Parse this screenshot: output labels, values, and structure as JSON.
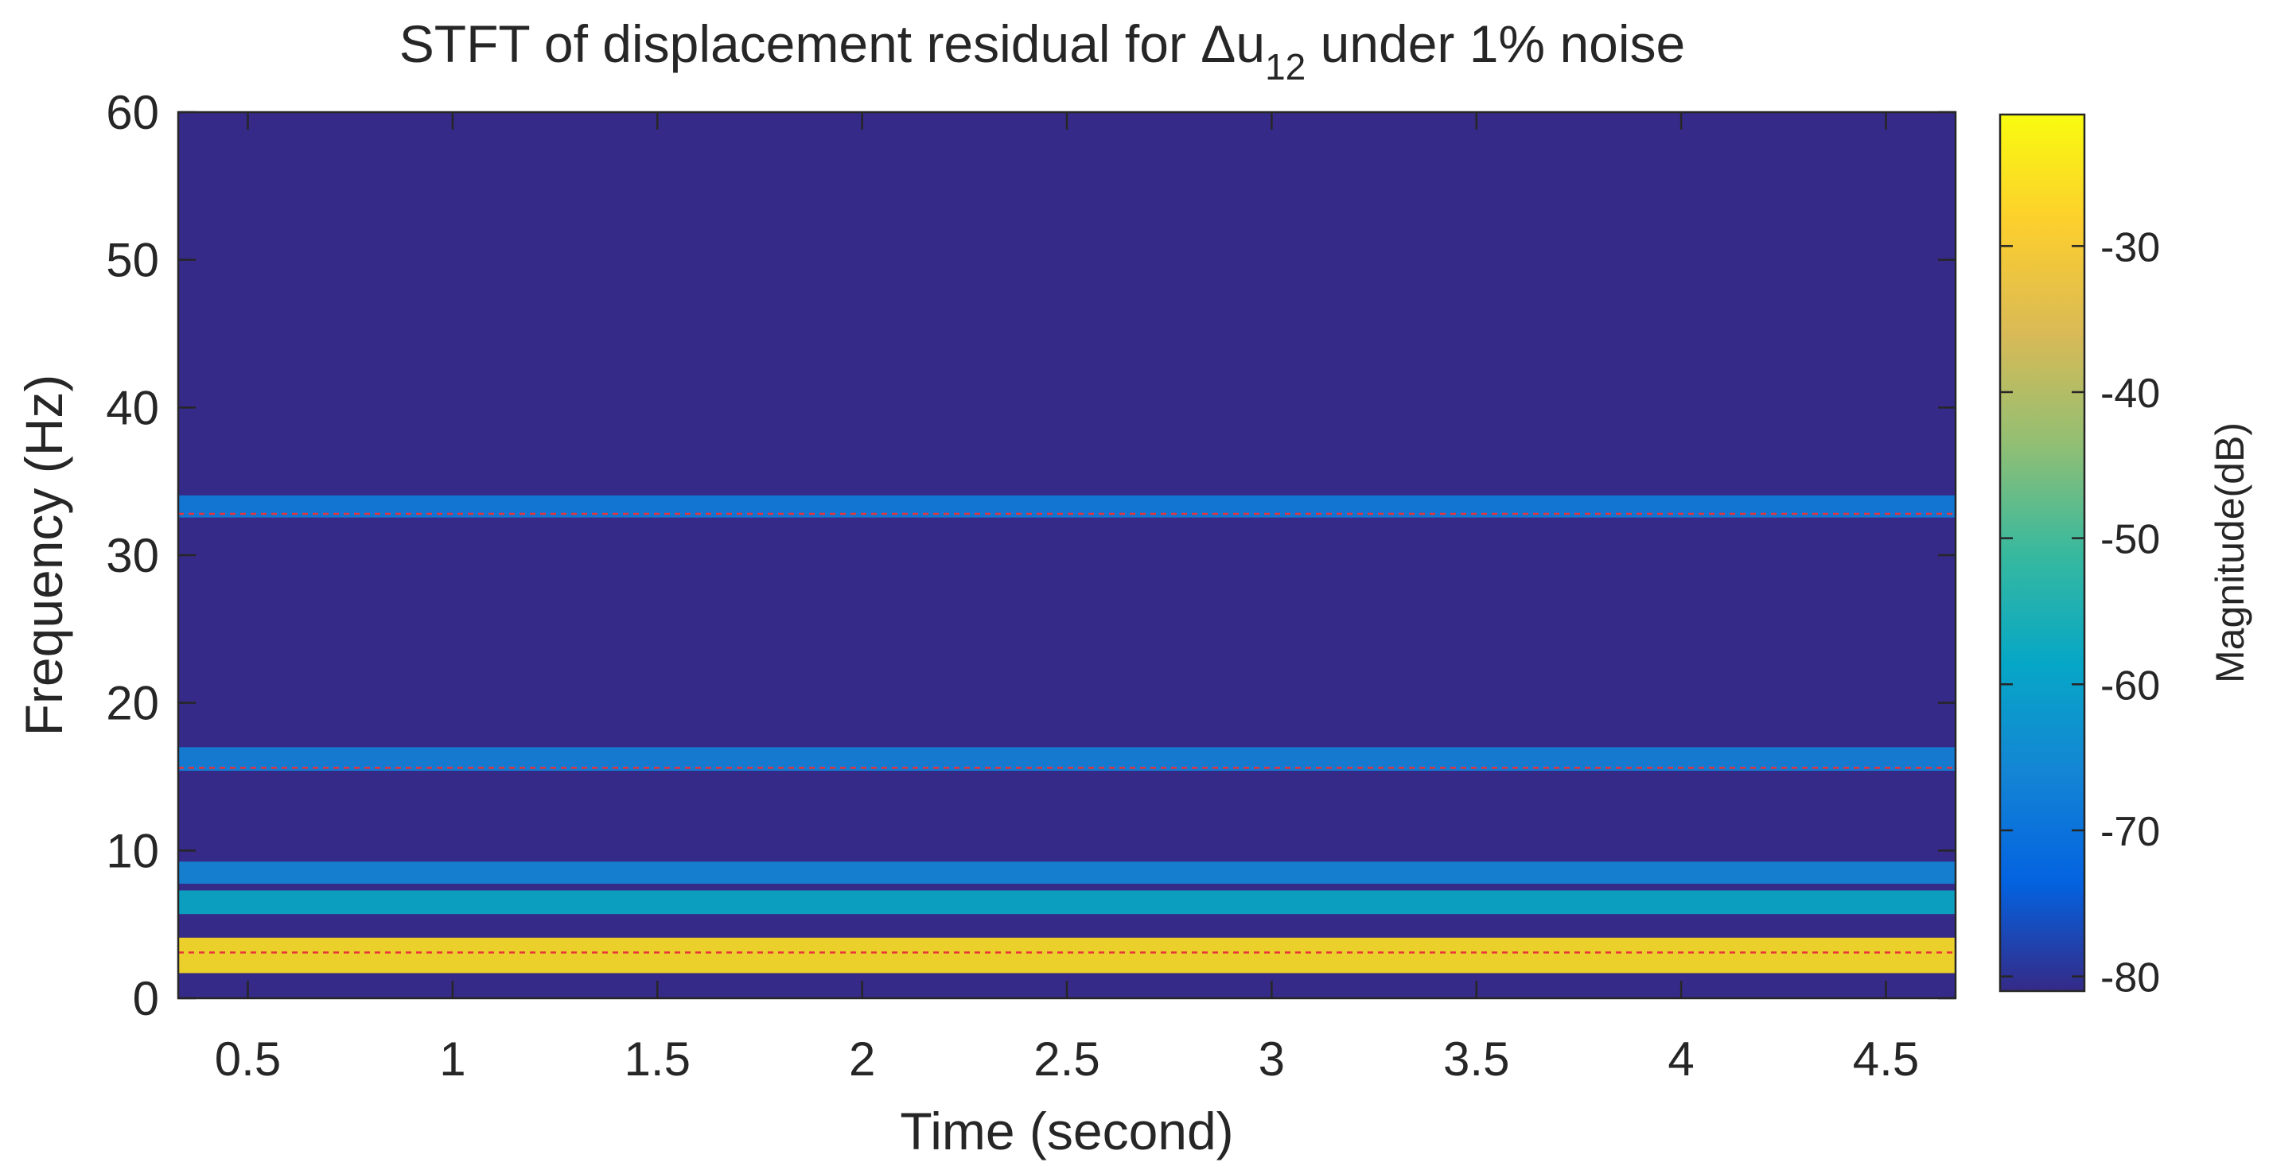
{
  "chart_data": {
    "type": "heatmap",
    "title": {
      "prefix": "STFT of displacement residual for ",
      "symbol": "Δu",
      "subscript": "12",
      "suffix": " under 1% noise"
    },
    "xlabel": "Time (second)",
    "ylabel": "Frequency (Hz)",
    "xlim": [
      0.33,
      4.67
    ],
    "ylim": [
      0,
      60
    ],
    "xticks": [
      0.5,
      1,
      1.5,
      2,
      2.5,
      3,
      3.5,
      4,
      4.5
    ],
    "xtick_labels": [
      "0.5",
      "1",
      "1.5",
      "2",
      "2.5",
      "3",
      "3.5",
      "4",
      "4.5"
    ],
    "yticks": [
      0,
      10,
      20,
      30,
      40,
      50,
      60
    ],
    "ytick_labels": [
      "0",
      "10",
      "20",
      "30",
      "40",
      "50",
      "60"
    ],
    "colorbar": {
      "label": "Magnitude(dB)",
      "range": [
        -81,
        -21
      ],
      "ticks": [
        -30,
        -40,
        -50,
        -60,
        -70,
        -80
      ],
      "tick_labels": [
        "-30",
        "-40",
        "-50",
        "-60",
        "-70",
        "-80"
      ],
      "colormap": "parula"
    },
    "reference_lines_hz": [
      3.1,
      15.6,
      32.8
    ],
    "reference_line_color": "#e8333a",
    "bands": [
      {
        "center_hz": 2.9,
        "width_hz": 2.4,
        "peak_db": -26
      },
      {
        "center_hz": 6.5,
        "width_hz": 1.6,
        "peak_db": -58
      },
      {
        "center_hz": 8.5,
        "width_hz": 1.5,
        "peak_db": -66
      },
      {
        "center_hz": 16.2,
        "width_hz": 1.6,
        "peak_db": -67
      },
      {
        "center_hz": 33.3,
        "width_hz": 1.5,
        "peak_db": -68
      }
    ],
    "background_db": -80
  },
  "colors": {
    "axis": "#262626",
    "background": "#ffffff"
  }
}
